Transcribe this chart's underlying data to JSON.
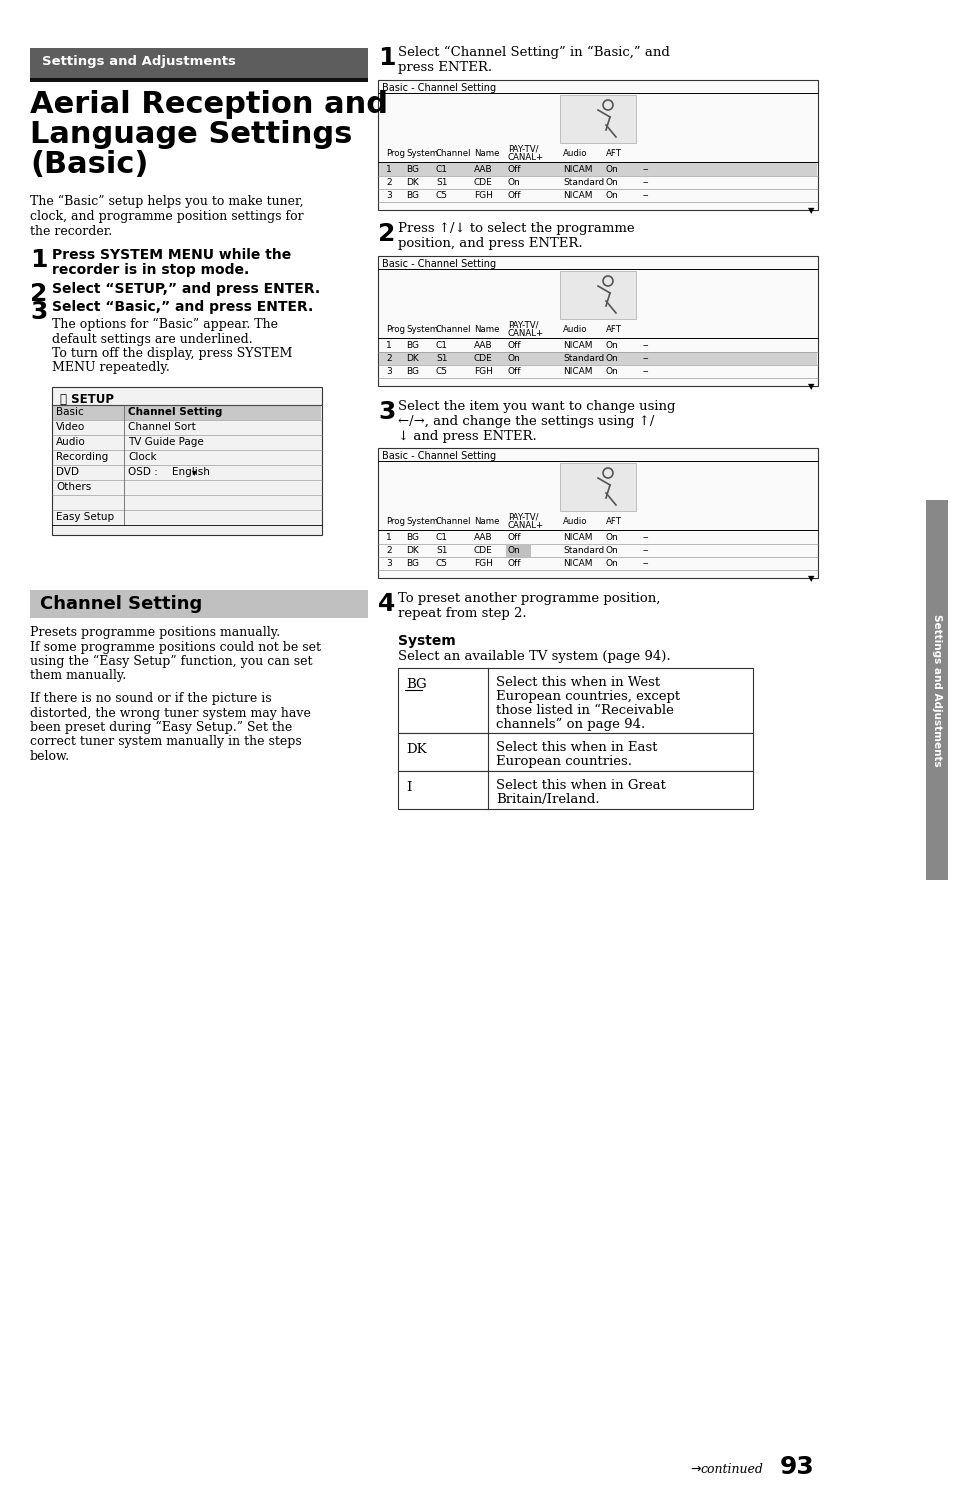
{
  "page_bg": "#ffffff",
  "header_bg": "#5a5a5a",
  "header_text": "Settings and Adjustments",
  "title_line1": "Aerial Reception and",
  "title_line2": "Language Settings",
  "title_line3": "(Basic)",
  "intro_text": [
    "The “Basic” setup helps you to make tuner,",
    "clock, and programme position settings for",
    "the recorder."
  ],
  "left_step1_bold": [
    "Press SYSTEM MENU while the",
    "recorder is in stop mode."
  ],
  "left_step2_bold": "Select “SETUP,” and press ENTER.",
  "left_step3_bold": "Select “Basic,” and press ENTER.",
  "left_step3_sub": [
    "The options for “Basic” appear. The",
    "default settings are underlined.",
    "To turn off the display, press SYSTEM",
    "MENU repeatedly."
  ],
  "setup_menu": [
    [
      "Basic",
      "Channel Setting",
      true
    ],
    [
      "Video",
      "Channel Sort",
      false
    ],
    [
      "Audio",
      "TV Guide Page",
      false
    ],
    [
      "Recording",
      "Clock",
      false
    ],
    [
      "DVD",
      "OSD :",
      false,
      "English"
    ],
    [
      "Others",
      "",
      false
    ],
    [
      "",
      "",
      false
    ],
    [
      "Easy Setup",
      "",
      false
    ]
  ],
  "channel_setting_header": "Channel Setting",
  "channel_text1": [
    "Presets programme positions manually.",
    "If some programme positions could not be set",
    "using the “Easy Setup” function, you can set",
    "them manually."
  ],
  "channel_text2": [
    "If there is no sound or if the picture is",
    "distorted, the wrong tuner system may have",
    "been preset during “Easy Setup.” Set the",
    "correct tuner system manually in the steps",
    "below."
  ],
  "right_step1": [
    "Select “Channel Setting” in “Basic,” and",
    "press ENTER."
  ],
  "right_step2": [
    "Press ↑/↓ to select the programme",
    "position, and press ENTER."
  ],
  "right_step3": [
    "Select the item you want to change using",
    "←/→, and change the settings using ↑/",
    "↓ and press ENTER."
  ],
  "right_step4": [
    "To preset another programme position,",
    "repeat from step 2."
  ],
  "system_title": "System",
  "system_intro": "Select an available TV system (page 94).",
  "system_table": [
    [
      "BG",
      [
        "Select this when in West",
        "European countries, except",
        "those listed in “Receivable",
        "channels” on page 94."
      ]
    ],
    [
      "DK",
      [
        "Select this when in East",
        "European countries."
      ]
    ],
    [
      "I",
      [
        "Select this when in Great",
        "Britain/Ireland."
      ]
    ]
  ],
  "table_data": [
    [
      "1",
      "BG",
      "C1",
      "AAB",
      "Off",
      "NICAM",
      "On",
      "--"
    ],
    [
      "2",
      "DK",
      "S1",
      "CDE",
      "On",
      "Standard",
      "On",
      "--"
    ],
    [
      "3",
      "BG",
      "C5",
      "FGH",
      "Off",
      "NICAM",
      "On",
      "--"
    ]
  ],
  "col_positions": [
    8,
    28,
    58,
    96,
    130,
    185,
    228,
    265
  ],
  "col_headers": [
    "Prog",
    "System",
    "Channel",
    "Name",
    "PAY-TV/\nCANAL+",
    "Audio",
    "AFT"
  ],
  "sidebar_bg": "#7a7a7a",
  "sidebar_text": "Settings and Adjustments"
}
